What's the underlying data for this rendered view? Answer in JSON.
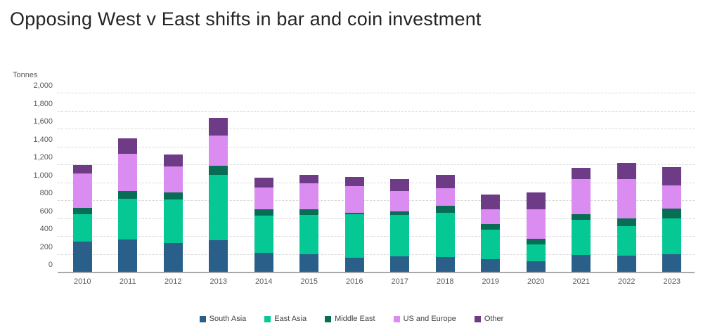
{
  "page": {
    "title": "Opposing West v East shifts in bar and coin investment"
  },
  "axis": {
    "unit_label": "Tonnes"
  },
  "chart_data": {
    "type": "bar",
    "stacked": true,
    "title": "Opposing West v East shifts in bar and coin investment",
    "ylabel": "Tonnes",
    "xlabel": "",
    "ylim": [
      0,
      2000
    ],
    "y_tick_step": 200,
    "y_tick_labels": [
      "0",
      "200",
      "400",
      "600",
      "800",
      "1,000",
      "1,200",
      "1,400",
      "1,600",
      "1,800",
      "2,000"
    ],
    "grid": true,
    "grid_style": "dashed",
    "legend_position": "bottom",
    "categories": [
      "2010",
      "2011",
      "2012",
      "2013",
      "2014",
      "2015",
      "2016",
      "2017",
      "2018",
      "2019",
      "2020",
      "2021",
      "2022",
      "2023"
    ],
    "series": [
      {
        "name": "South Asia",
        "color": "#2A5F8A",
        "values": [
          340,
          360,
          320,
          350,
          215,
          195,
          160,
          175,
          165,
          145,
          120,
          190,
          180,
          195
        ]
      },
      {
        "name": "East Asia",
        "color": "#05C894",
        "values": [
          300,
          455,
          490,
          730,
          410,
          440,
          480,
          460,
          495,
          325,
          185,
          390,
          330,
          405
        ]
      },
      {
        "name": "Middle East",
        "color": "#076D55",
        "values": [
          70,
          90,
          75,
          105,
          70,
          60,
          20,
          40,
          75,
          60,
          65,
          65,
          90,
          105
        ]
      },
      {
        "name": "US and Europe",
        "color": "#DB8CF0",
        "values": [
          390,
          415,
          295,
          335,
          245,
          295,
          295,
          230,
          195,
          165,
          330,
          390,
          435,
          260
        ]
      },
      {
        "name": "Other",
        "color": "#6E3B87",
        "values": [
          95,
          170,
          130,
          200,
          110,
          90,
          105,
          130,
          150,
          165,
          190,
          130,
          180,
          205
        ]
      }
    ],
    "totals": [
      1195,
      1490,
      1310,
      1720,
      1050,
      1080,
      1060,
      1035,
      1080,
      860,
      890,
      1165,
      1215,
      1170
    ]
  }
}
